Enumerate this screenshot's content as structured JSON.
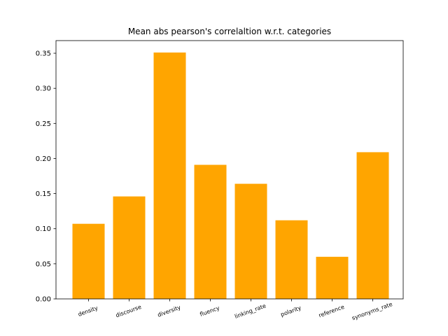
{
  "chart_data": {
    "type": "bar",
    "title": "Mean abs pearson's correlaltion w.r.t. categories",
    "xlabel": "",
    "ylabel": "",
    "categories": [
      "density",
      "discourse",
      "diversity",
      "fluency",
      "linking_rate",
      "polarity",
      "reference",
      "synonyms_rate"
    ],
    "values": [
      0.107,
      0.146,
      0.351,
      0.191,
      0.164,
      0.112,
      0.06,
      0.209
    ],
    "ylim": [
      0,
      0.368
    ],
    "yticks": [
      0.0,
      0.05,
      0.1,
      0.15,
      0.2,
      0.25,
      0.3,
      0.35
    ],
    "ytick_labels": [
      "0.00",
      "0.05",
      "0.10",
      "0.15",
      "0.20",
      "0.25",
      "0.30",
      "0.35"
    ],
    "bar_color": "#ffa500",
    "grid": false,
    "legend": "none"
  }
}
